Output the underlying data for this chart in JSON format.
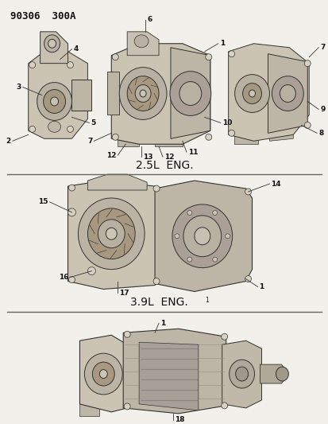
{
  "title_code": "90306  300A",
  "background_color": "#f2f0eb",
  "section1_label": "2.5L  ENG.",
  "section2_label": "3.9L  ENG.",
  "section2_superscript": "1",
  "divider_color": "#666666",
  "text_color": "#111111",
  "line_color": "#333333",
  "part_fill": "#d0c8b8",
  "part_dark": "#a09888",
  "part_outline": "#333333",
  "font_size_label": 6.5,
  "font_size_title": 9,
  "font_size_section": 10
}
